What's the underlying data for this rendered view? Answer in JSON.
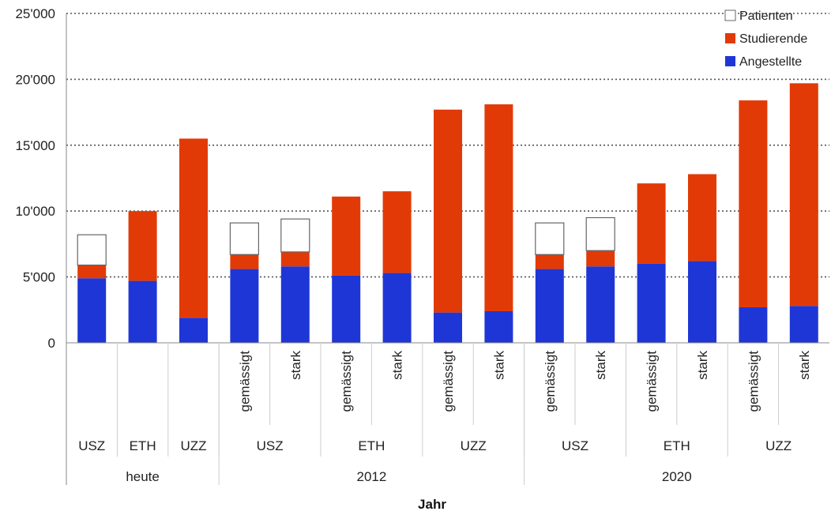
{
  "chart_data": {
    "type": "bar",
    "stacked": true,
    "xlabel": "Jahr",
    "ylabel": "",
    "ylim": [
      0,
      25000
    ],
    "yticks": [
      0,
      5000,
      10000,
      15000,
      20000,
      25000
    ],
    "ytick_labels": [
      "0",
      "5'000",
      "10'000",
      "15'000",
      "20'000",
      "25'000"
    ],
    "grid": true,
    "legend_position": "top-right",
    "groups": [
      {
        "label": "heute",
        "span": 3
      },
      {
        "label": "2012",
        "span": 6
      },
      {
        "label": "2020",
        "span": 6
      }
    ],
    "institutions": [
      {
        "label": "USZ",
        "span": 1
      },
      {
        "label": "ETH",
        "span": 1
      },
      {
        "label": "UZZ",
        "span": 1
      },
      {
        "label": "USZ",
        "span": 2
      },
      {
        "label": "ETH",
        "span": 2
      },
      {
        "label": "UZZ",
        "span": 2
      },
      {
        "label": "USZ",
        "span": 2
      },
      {
        "label": "ETH",
        "span": 2
      },
      {
        "label": "UZZ",
        "span": 2
      }
    ],
    "scenarios": [
      "",
      "",
      "",
      "gemässigt",
      "stark",
      "gemässigt",
      "stark",
      "gemässigt",
      "stark",
      "gemässigt",
      "stark",
      "gemässigt",
      "stark",
      "gemässigt",
      "stark"
    ],
    "series": [
      {
        "name": "Angestellte",
        "color": "#1f36d6",
        "values": [
          4900,
          4700,
          1900,
          5600,
          5800,
          5100,
          5300,
          2300,
          2400,
          5600,
          5800,
          6000,
          6200,
          2700,
          2800
        ]
      },
      {
        "name": "Studierende",
        "color": "#e23a06",
        "values": [
          1000,
          5300,
          13600,
          1100,
          1100,
          6000,
          6200,
          15400,
          15700,
          1100,
          1200,
          6100,
          6600,
          15700,
          16900
        ]
      },
      {
        "name": "Patienten",
        "color": "#ffffff",
        "values": [
          2300,
          0,
          0,
          2400,
          2500,
          0,
          0,
          0,
          0,
          2400,
          2500,
          0,
          0,
          0,
          0
        ]
      }
    ]
  }
}
